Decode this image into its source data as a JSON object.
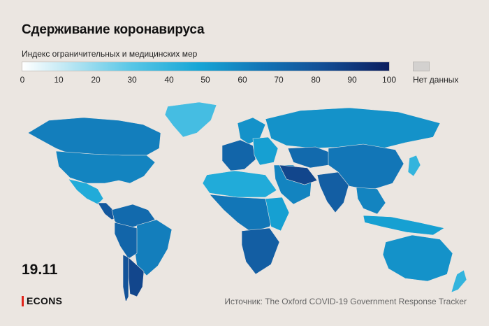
{
  "title": "Сдерживание коронавируса",
  "legend": {
    "label": "Индекс ограничительных и медицинских мер",
    "ticks": [
      "0",
      "10",
      "20",
      "30",
      "40",
      "50",
      "60",
      "70",
      "80",
      "90",
      "100"
    ],
    "no_data_label": "Нет данных",
    "colors": {
      "low": "#ffffff",
      "mid": "#16a6d6",
      "high": "#0b1d5e",
      "no_data": "#d3d1cf",
      "background": "#ebe6e1"
    }
  },
  "date": "19.11",
  "brand": "ECONS",
  "source": "Источник: The Oxford COVID-19 Government Response Tracker",
  "regions": {
    "north_america": 60,
    "canada": 62,
    "greenland": 35,
    "mexico": 45,
    "central_america": 78,
    "colombia_venezuela": 70,
    "brazil": 62,
    "peru_bolivia": 72,
    "argentina": 85,
    "chile": 80,
    "europe_west": 72,
    "scandinavia": 55,
    "eastern_europe": 50,
    "russia": 55,
    "kazakhstan": 70,
    "middle_east": 60,
    "iran_iraq": 85,
    "africa_north": 45,
    "africa_central": 65,
    "africa_east": 50,
    "africa_south": 75,
    "south_asia": 75,
    "china": 65,
    "southeast_asia": 60,
    "indonesia": 50,
    "australia": 55,
    "japan": 40,
    "new_zealand": 40
  }
}
